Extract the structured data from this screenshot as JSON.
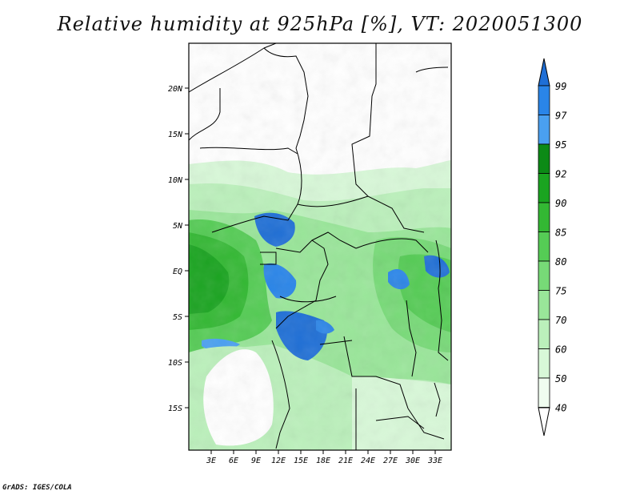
{
  "title": "Relative humidity at 925hPa [%], VT: 2020051300",
  "credit": "GrADS: IGES/COLA",
  "map": {
    "lat_ticks": [
      "20N",
      "15N",
      "10N",
      "5N",
      "EQ",
      "5S",
      "10S",
      "15S"
    ],
    "lon_ticks": [
      "3E",
      "6E",
      "9E",
      "12E",
      "15E",
      "18E",
      "21E",
      "24E",
      "27E",
      "30E",
      "33E"
    ]
  },
  "colorbar": {
    "labels": [
      "99",
      "97",
      "95",
      "92",
      "90",
      "85",
      "80",
      "75",
      "70",
      "60",
      "50",
      "40"
    ],
    "colors": [
      "#1f6fd6",
      "#2a85e8",
      "#4aa0f0",
      "#0c8a16",
      "#1aa420",
      "#33b833",
      "#55cc55",
      "#77da77",
      "#99e699",
      "#bbf0bb",
      "#d8f8d8",
      "#f0fdf0"
    ],
    "extend_top_color": "#1f6fd6",
    "extend_bottom_color": "#ffffff"
  }
}
